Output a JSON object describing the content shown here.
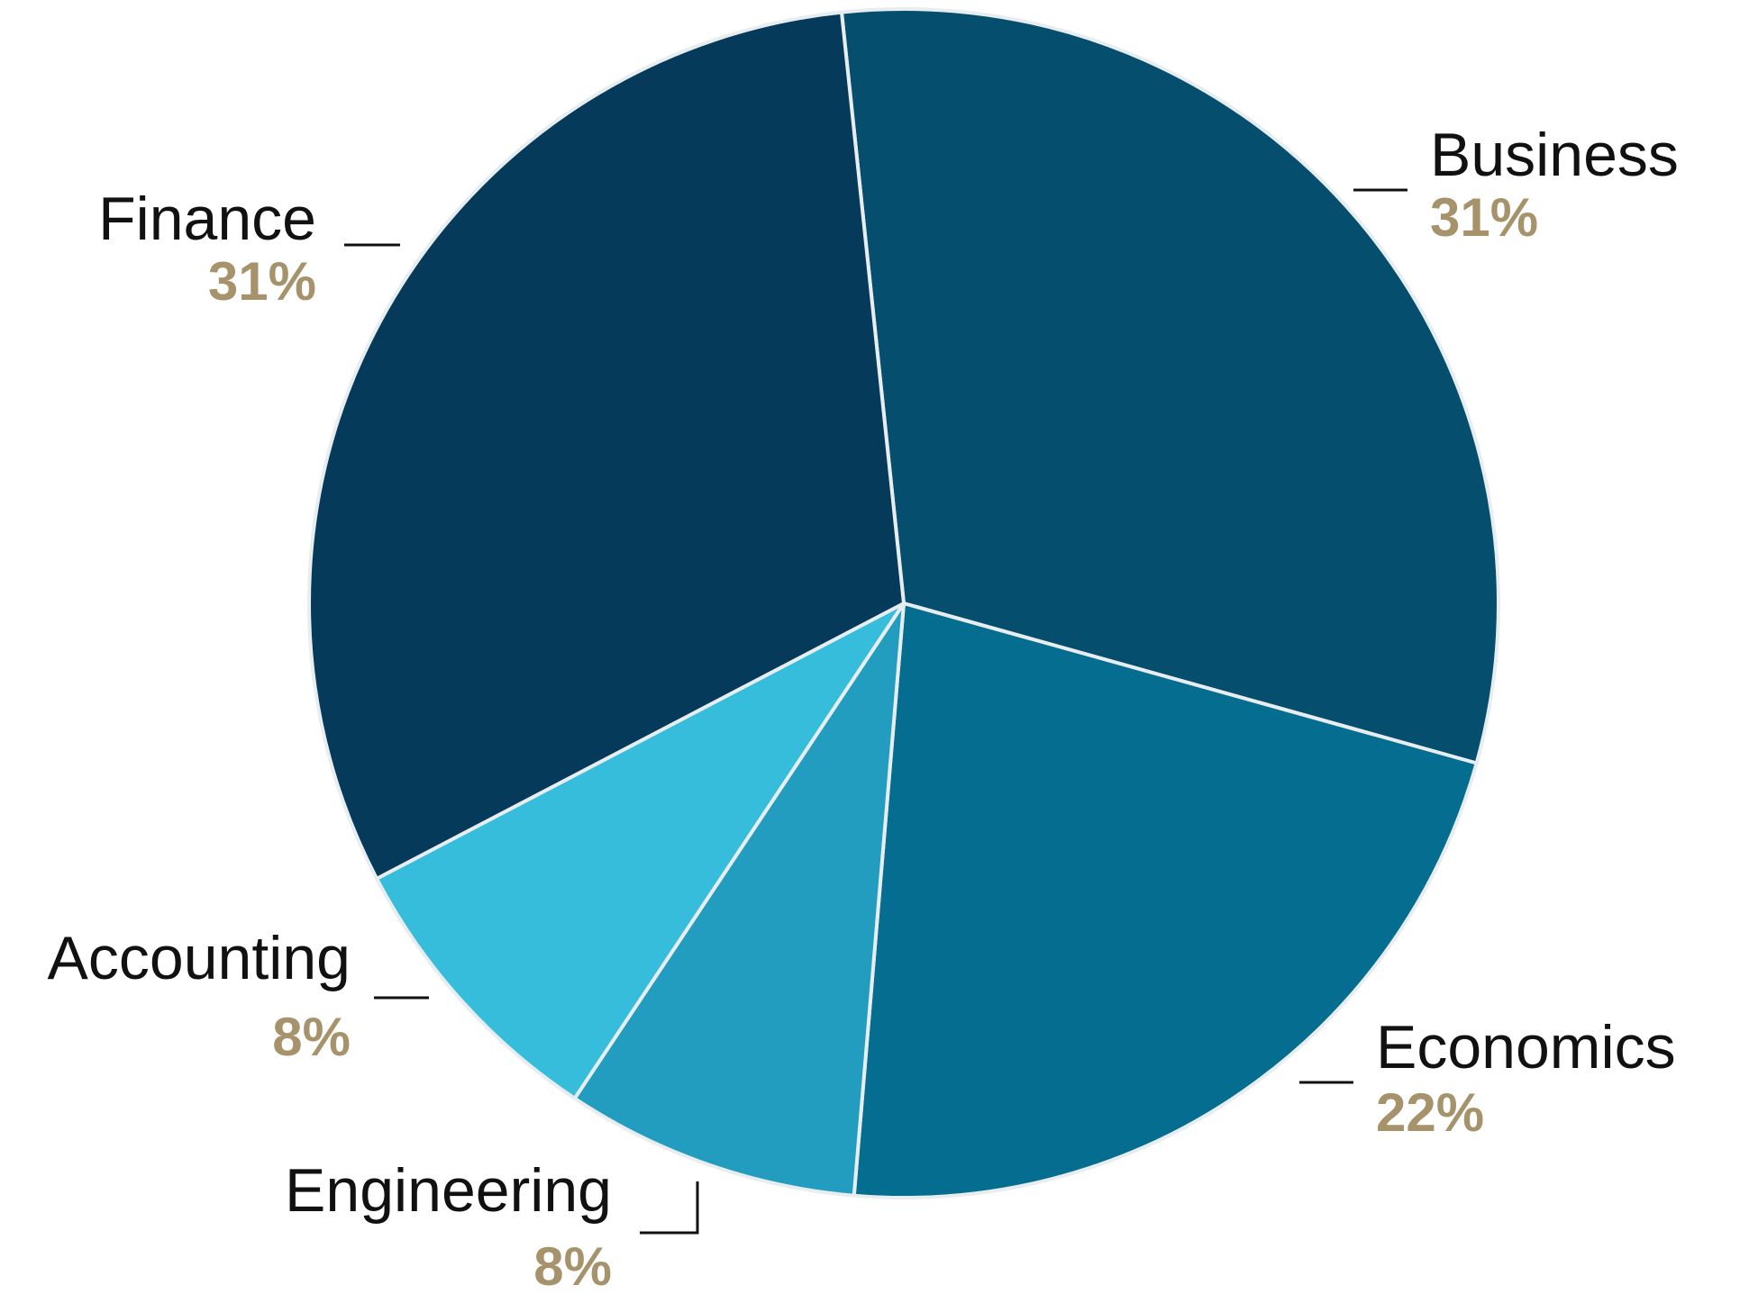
{
  "chart_data": {
    "type": "pie",
    "title": "",
    "slices": [
      {
        "label": "Business",
        "value": 31,
        "display": "31%",
        "color": "#054e6e"
      },
      {
        "label": "Economics",
        "value": 22,
        "display": "22%",
        "color": "#056d90"
      },
      {
        "label": "Engineering",
        "value": 8,
        "display": "8%",
        "color": "#239dbf"
      },
      {
        "label": "Accounting",
        "value": 8,
        "display": "8%",
        "color": "#37bddc"
      },
      {
        "label": "Finance",
        "value": 31,
        "display": "31%",
        "color": "#053a5a"
      }
    ],
    "start_angle_deg": -6,
    "direction": "clockwise",
    "percent_color": "#a6936b",
    "slice_border_color": "#e8edf0"
  }
}
